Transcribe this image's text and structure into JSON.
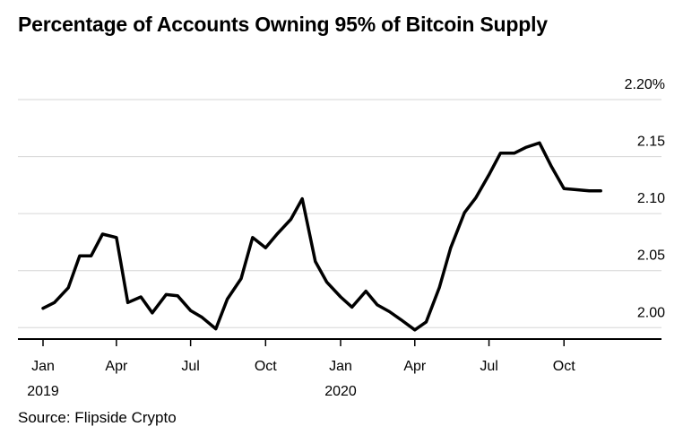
{
  "chart_data": {
    "type": "line",
    "title": "Percentage of Accounts Owning 95% of Bitcoin Supply",
    "source": "Source: Flipside Crypto",
    "xlabel": "",
    "ylabel": "",
    "ylim": [
      1.99,
      2.2
    ],
    "y_ticks": [
      {
        "value": 2.2,
        "label": "2.20%"
      },
      {
        "value": 2.15,
        "label": "2.15"
      },
      {
        "value": 2.1,
        "label": "2.10"
      },
      {
        "value": 2.05,
        "label": "2.05"
      },
      {
        "value": 2.0,
        "label": "2.00"
      }
    ],
    "x_range": [
      "2019-01-01",
      "2020-12-31"
    ],
    "x_ticks": [
      {
        "date": "2019-01-01",
        "label": "Jan",
        "sublabel": "2019"
      },
      {
        "date": "2019-04-01",
        "label": "Apr",
        "sublabel": ""
      },
      {
        "date": "2019-07-01",
        "label": "Jul",
        "sublabel": ""
      },
      {
        "date": "2019-10-01",
        "label": "Oct",
        "sublabel": ""
      },
      {
        "date": "2020-01-01",
        "label": "Jan",
        "sublabel": "2020"
      },
      {
        "date": "2020-04-01",
        "label": "Apr",
        "sublabel": ""
      },
      {
        "date": "2020-07-01",
        "label": "Jul",
        "sublabel": ""
      },
      {
        "date": "2020-10-01",
        "label": "Oct",
        "sublabel": ""
      }
    ],
    "grid": true,
    "line_color": "#000000",
    "series": [
      {
        "x": [
          "2019-01-01",
          "2019-01-15",
          "2019-02-01",
          "2019-02-15",
          "2019-03-01",
          "2019-03-15",
          "2019-04-01",
          "2019-04-15",
          "2019-05-01",
          "2019-05-15",
          "2019-06-01",
          "2019-06-15",
          "2019-07-01",
          "2019-07-15",
          "2019-08-01",
          "2019-08-15",
          "2019-09-01",
          "2019-09-15",
          "2019-10-01",
          "2019-10-15",
          "2019-11-01",
          "2019-11-15",
          "2019-12-01",
          "2019-12-15",
          "2020-01-01",
          "2020-01-15",
          "2020-02-01",
          "2020-02-15",
          "2020-03-01",
          "2020-03-15",
          "2020-04-01",
          "2020-04-15",
          "2020-05-01",
          "2020-05-15",
          "2020-06-01",
          "2020-06-15",
          "2020-07-01",
          "2020-07-15",
          "2020-08-01",
          "2020-08-15",
          "2020-09-01",
          "2020-09-15",
          "2020-10-01",
          "2020-10-15",
          "2020-11-01",
          "2020-11-15"
        ],
        "values": [
          2.017,
          2.022,
          2.035,
          2.063,
          2.063,
          2.082,
          2.079,
          2.022,
          2.027,
          2.013,
          2.029,
          2.028,
          2.015,
          2.009,
          1.999,
          2.025,
          2.043,
          2.079,
          2.07,
          2.082,
          2.095,
          2.113,
          2.058,
          2.04,
          2.027,
          2.018,
          2.032,
          2.02,
          2.014,
          2.007,
          1.998,
          2.005,
          2.035,
          2.07,
          2.101,
          2.114,
          2.134,
          2.153,
          2.153,
          2.158,
          2.162,
          2.142,
          2.122,
          2.121,
          2.12,
          2.12
        ]
      }
    ]
  }
}
